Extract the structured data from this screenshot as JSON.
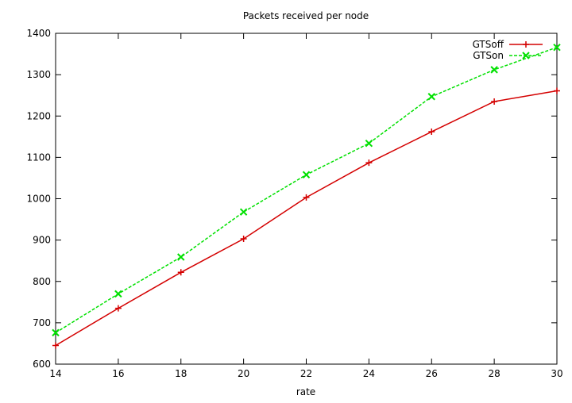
{
  "chart_data": {
    "type": "line",
    "title": "Packets received per node",
    "xlabel": "rate",
    "ylabel": "",
    "xlim": [
      14,
      30
    ],
    "ylim": [
      600,
      1400
    ],
    "xticks": [
      14,
      16,
      18,
      20,
      22,
      24,
      26,
      28,
      30
    ],
    "yticks": [
      600,
      700,
      800,
      900,
      1000,
      1100,
      1200,
      1300,
      1400
    ],
    "grid": false,
    "legend_position": "top-right",
    "series": [
      {
        "name": "GTSoff",
        "color": "#d40000",
        "marker": "plus",
        "dashed": false,
        "x": [
          14,
          16,
          18,
          20,
          22,
          24,
          26,
          28,
          30
        ],
        "y": [
          645,
          735,
          822,
          903,
          1003,
          1087,
          1162,
          1235,
          1261
        ]
      },
      {
        "name": "GTSon",
        "color": "#00e000",
        "marker": "cross",
        "dashed": true,
        "x": [
          14,
          16,
          18,
          20,
          22,
          24,
          26,
          28,
          30
        ],
        "y": [
          676,
          770,
          859,
          968,
          1058,
          1134,
          1247,
          1312,
          1366
        ]
      }
    ]
  }
}
